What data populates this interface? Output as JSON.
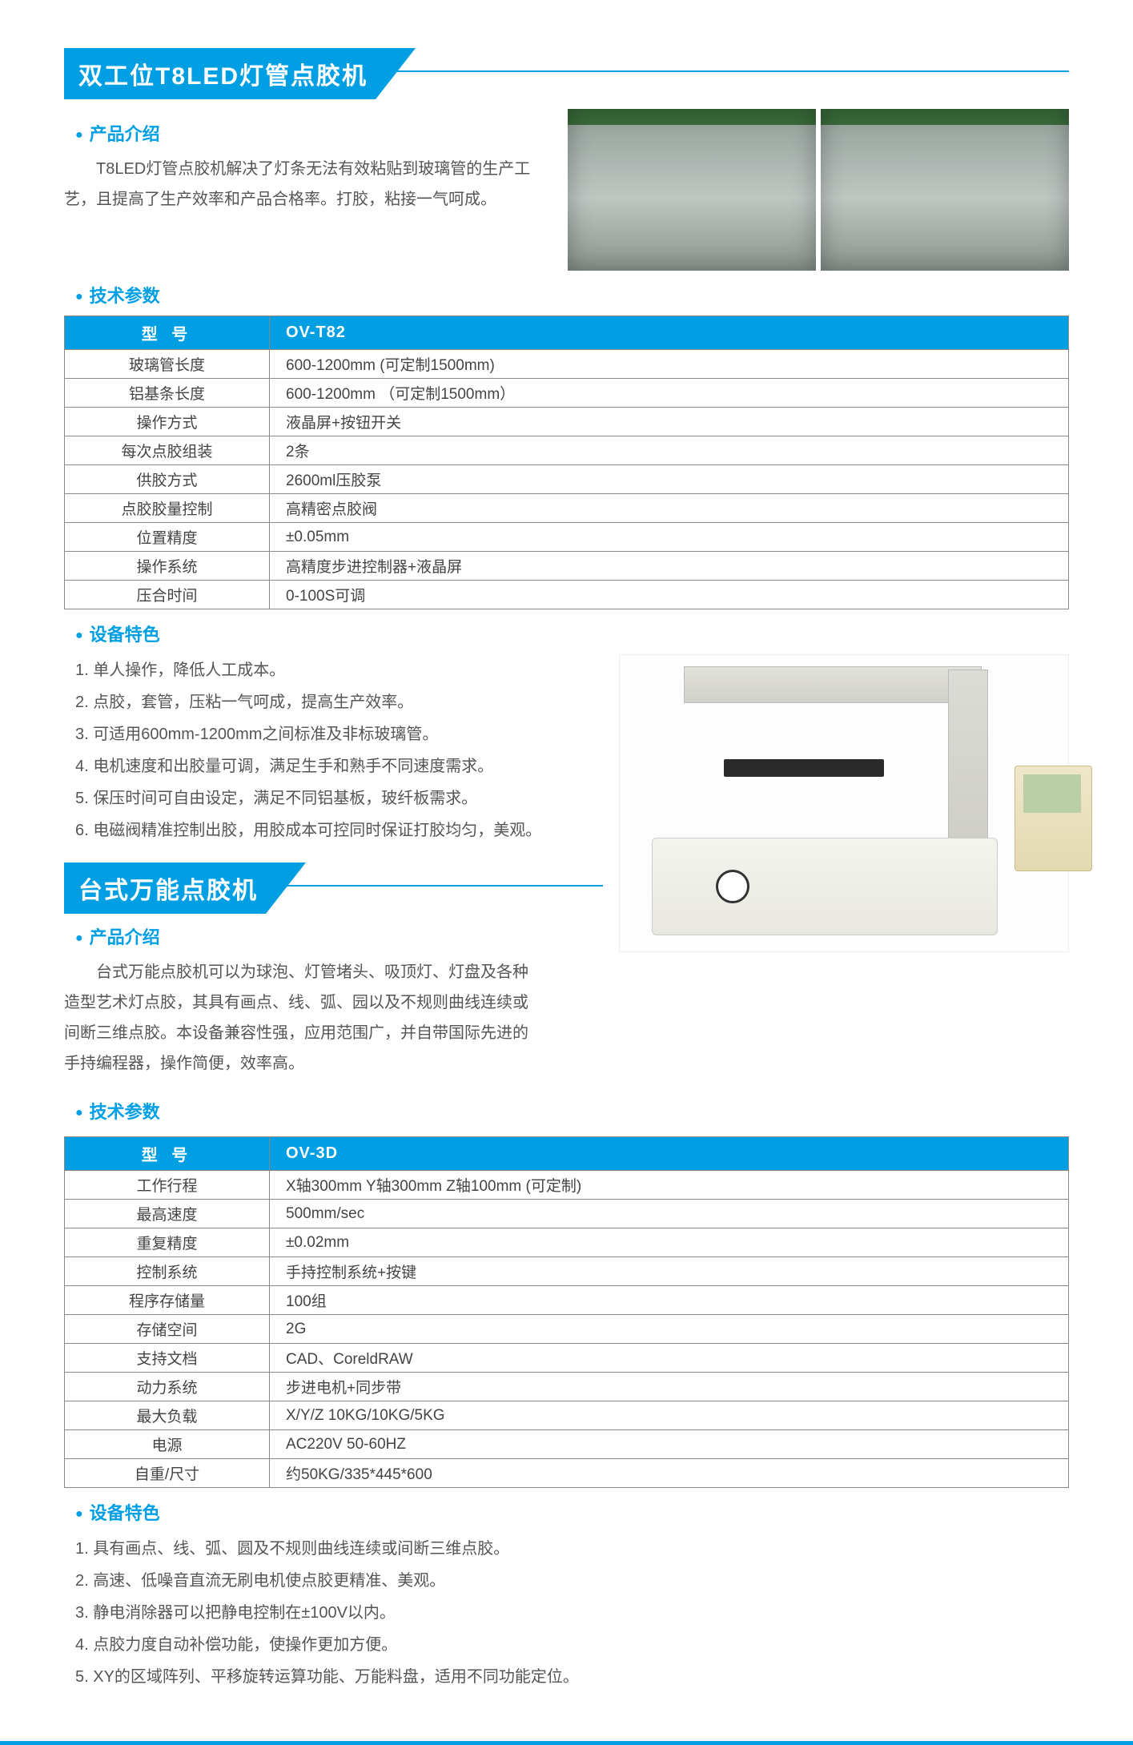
{
  "colors": {
    "accent": "#009fe3",
    "text": "#4a4a4a",
    "table_border": "#888888",
    "bg": "#ffffff"
  },
  "product1": {
    "title": "双工位T8LED灯管点胶机",
    "intro_head": "产品介绍",
    "intro_text": "T8LED灯管点胶机解决了灯条无法有效粘贴到玻璃管的生产工艺，且提高了生产效率和产品合格率。打胶，粘接一气呵成。",
    "spec_head": "技术参数",
    "spec_header_label": "型  号",
    "spec_header_value": "OV-T82",
    "specs": [
      {
        "label": "玻璃管长度",
        "value": "600-1200mm  (可定制1500mm)"
      },
      {
        "label": "铝基条长度",
        "value": "600-1200mm （可定制1500mm）"
      },
      {
        "label": "操作方式",
        "value": "液晶屏+按钮开关"
      },
      {
        "label": "每次点胶组装",
        "value": "2条"
      },
      {
        "label": "供胶方式",
        "value": "2600ml压胶泵"
      },
      {
        "label": "点胶胶量控制",
        "value": "高精密点胶阀"
      },
      {
        "label": "位置精度",
        "value": "±0.05mm"
      },
      {
        "label": "操作系统",
        "value": "高精度步进控制器+液晶屏"
      },
      {
        "label": "压合时间",
        "value": "0-100S可调"
      }
    ],
    "feature_head": "设备特色",
    "features": [
      "1. 单人操作，降低人工成本。",
      "2. 点胶，套管，压粘一气呵成，提高生产效率。",
      "3. 可适用600mm-1200mm之间标准及非标玻璃管。",
      "4. 电机速度和出胶量可调，满足生手和熟手不同速度需求。",
      "5. 保压时间可自由设定，满足不同铝基板，玻纤板需求。",
      "6. 电磁阀精准控制出胶，用胶成本可控同时保证打胶均匀，美观。"
    ]
  },
  "product2": {
    "title": "台式万能点胶机",
    "intro_head": "产品介绍",
    "intro_text": "台式万能点胶机可以为球泡、灯管堵头、吸顶灯、灯盘及各种造型艺术灯点胶，其具有画点、线、弧、园以及不规则曲线连续或间断三维点胶。本设备兼容性强，应用范围广，并自带国际先进的手持编程器，操作简便，效率高。",
    "spec_head": "技术参数",
    "spec_header_label": "型  号",
    "spec_header_value": "OV-3D",
    "specs": [
      {
        "label": "工作行程",
        "value": "X轴300mm   Y轴300mm   Z轴100mm  (可定制)"
      },
      {
        "label": "最高速度",
        "value": "500mm/sec"
      },
      {
        "label": "重复精度",
        "value": "±0.02mm"
      },
      {
        "label": "控制系统",
        "value": "手持控制系统+按键"
      },
      {
        "label": "程序存储量",
        "value": "100组"
      },
      {
        "label": "存储空间",
        "value": "2G"
      },
      {
        "label": "支持文档",
        "value": "CAD、CoreldRAW"
      },
      {
        "label": "动力系统",
        "value": "步进电机+同步带"
      },
      {
        "label": "最大负载",
        "value": "X/Y/Z  10KG/10KG/5KG"
      },
      {
        "label": "电源",
        "value": "AC220V 50-60HZ"
      },
      {
        "label": "自重/尺寸",
        "value": "约50KG/335*445*600"
      }
    ],
    "feature_head": "设备特色",
    "features": [
      "1. 具有画点、线、弧、圆及不规则曲线连续或间断三维点胶。",
      "2. 高速、低噪音直流无刷电机使点胶更精准、美观。",
      "3. 静电消除器可以把静电控制在±100V以内。",
      "4. 点胶力度自动补偿功能，使操作更加方便。",
      "5. XY的区域阵列、平移旋转运算功能、万能料盘，适用不同功能定位。"
    ]
  }
}
